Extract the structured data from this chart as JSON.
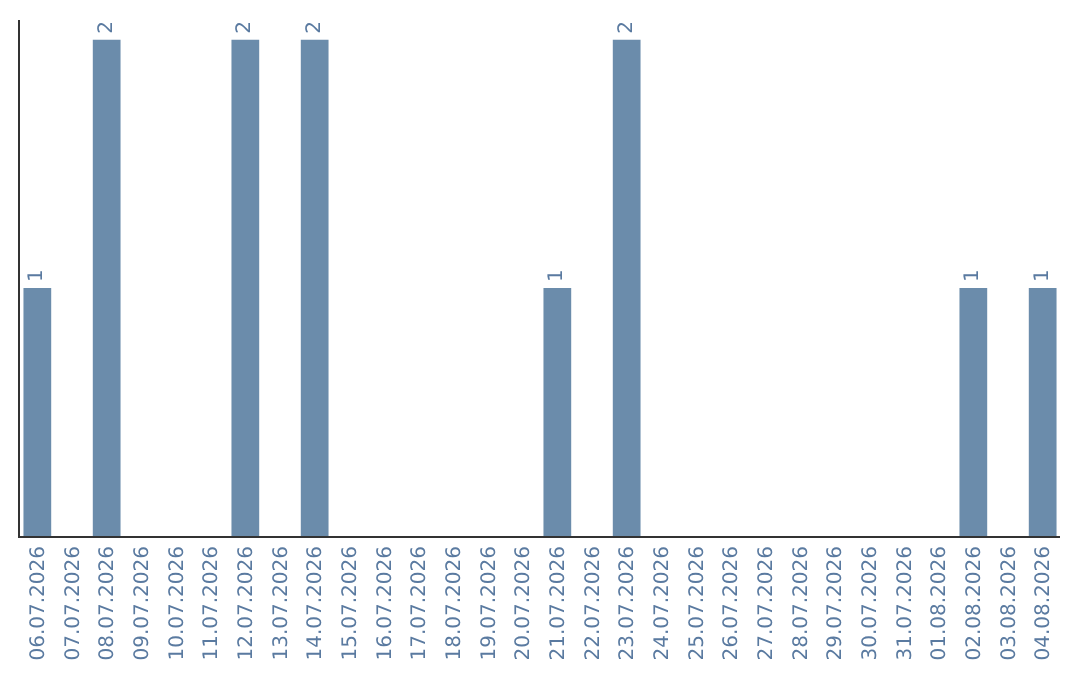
{
  "chart_data": {
    "type": "bar",
    "categories": [
      "06.07.2026",
      "07.07.2026",
      "08.07.2026",
      "09.07.2026",
      "10.07.2026",
      "11.07.2026",
      "12.07.2026",
      "13.07.2026",
      "14.07.2026",
      "15.07.2026",
      "16.07.2026",
      "17.07.2026",
      "18.07.2026",
      "19.07.2026",
      "20.07.2026",
      "21.07.2026",
      "22.07.2026",
      "23.07.2026",
      "24.07.2026",
      "25.07.2026",
      "26.07.2026",
      "27.07.2026",
      "28.07.2026",
      "29.07.2026",
      "30.07.2026",
      "31.07.2026",
      "01.08.2026",
      "02.08.2026",
      "03.08.2026",
      "04.08.2026"
    ],
    "values": [
      1,
      0,
      2,
      0,
      0,
      0,
      2,
      0,
      2,
      0,
      0,
      0,
      0,
      0,
      0,
      1,
      0,
      2,
      0,
      0,
      0,
      0,
      0,
      0,
      0,
      0,
      0,
      1,
      0,
      1
    ],
    "value_labels": [
      "1",
      null,
      "2",
      null,
      null,
      null,
      "2",
      null,
      "2",
      null,
      null,
      null,
      null,
      null,
      null,
      "1",
      null,
      "2",
      null,
      null,
      null,
      null,
      null,
      null,
      null,
      null,
      null,
      "1",
      null,
      "1"
    ],
    "color": "#6b8cab",
    "ylim": [
      0,
      2.08
    ],
    "tick_labels": "x"
  }
}
